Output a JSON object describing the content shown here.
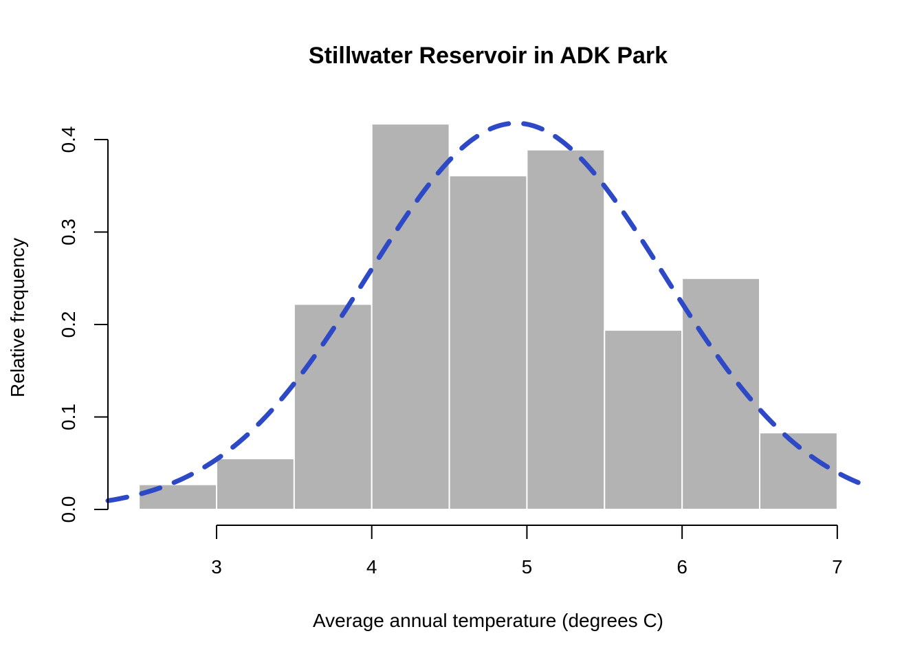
{
  "chart_data": {
    "type": "bar",
    "title": "Stillwater Reservoir in ADK Park",
    "xlabel": "Average annual temperature (degrees C)",
    "ylabel": "Relative frequency",
    "xlim": [
      2.3,
      7.2
    ],
    "ylim": [
      0,
      0.4
    ],
    "x_axis_range": [
      3,
      7
    ],
    "xticks": [
      3,
      4,
      5,
      6,
      7
    ],
    "xtick_labels": [
      "3",
      "4",
      "5",
      "6",
      "7"
    ],
    "yticks": [
      0.0,
      0.1,
      0.2,
      0.3,
      0.4
    ],
    "ytick_labels": [
      "0.0",
      "0.1",
      "0.2",
      "0.3",
      "0.4"
    ],
    "bins": [
      {
        "start": 2.5,
        "end": 3.0,
        "value": 0.027
      },
      {
        "start": 3.0,
        "end": 3.5,
        "value": 0.055
      },
      {
        "start": 3.5,
        "end": 4.0,
        "value": 0.222
      },
      {
        "start": 4.0,
        "end": 4.5,
        "value": 0.417
      },
      {
        "start": 4.5,
        "end": 5.0,
        "value": 0.361
      },
      {
        "start": 5.0,
        "end": 5.5,
        "value": 0.389
      },
      {
        "start": 5.5,
        "end": 6.0,
        "value": 0.194
      },
      {
        "start": 6.0,
        "end": 6.5,
        "value": 0.25
      },
      {
        "start": 6.5,
        "end": 7.0,
        "value": 0.083
      }
    ],
    "density_curve": {
      "mean": 4.93,
      "sd": 0.955,
      "style": "dashed"
    },
    "grid": false,
    "colors": {
      "bar_fill": "#b3b3b3",
      "bar_border": "#ffffff",
      "curve": "#2e49c5",
      "axis": "#000000"
    }
  }
}
